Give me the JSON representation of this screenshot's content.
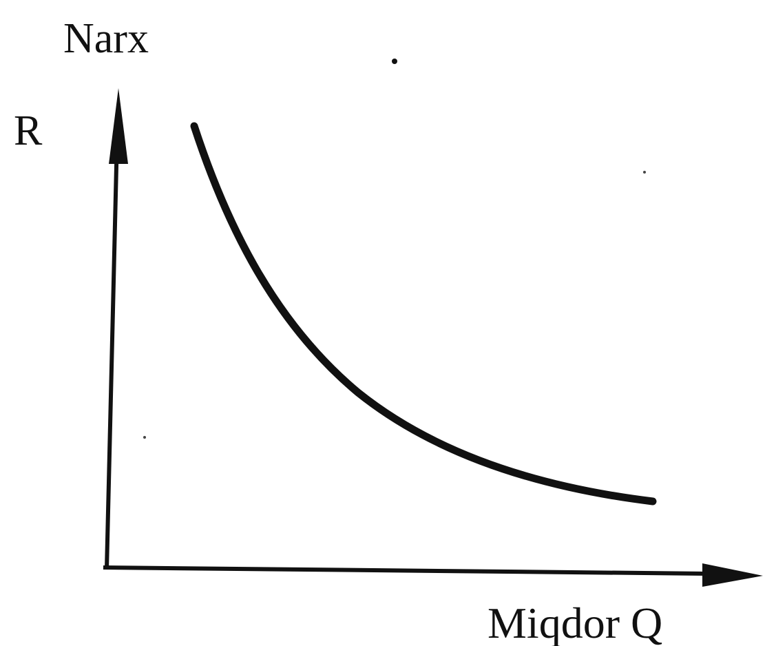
{
  "labels": {
    "y_axis": "Narx",
    "y_symbol": "R",
    "x_axis": "Miqdor Q"
  }
}
